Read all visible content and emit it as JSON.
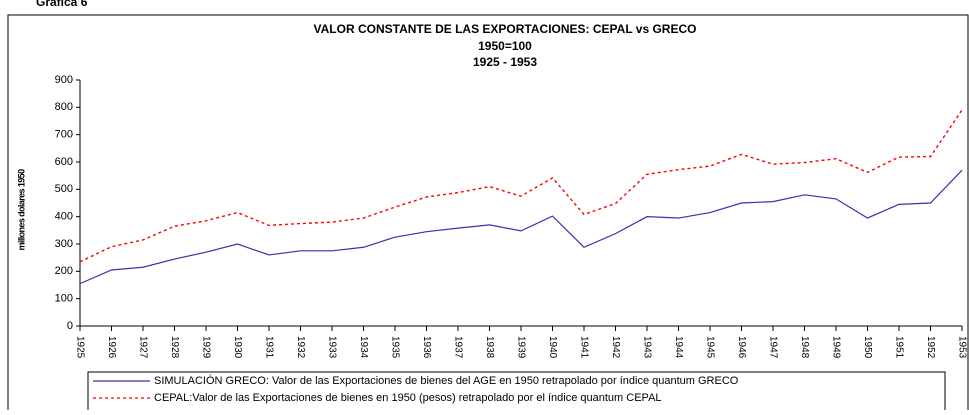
{
  "heading": "Gráfica 6",
  "chart_data": {
    "type": "line",
    "title": "VALOR CONSTANTE DE LAS EXPORTACIONES:  CEPAL vs GRECO",
    "subtitle": [
      "1950=100",
      "1925 - 1953"
    ],
    "y_label": "millones dolares 1950",
    "categories": [
      "1925",
      "1926",
      "1927",
      "1928",
      "1929",
      "1930",
      "1931",
      "1932",
      "1933",
      "1934",
      "1935",
      "1936",
      "1937",
      "1938",
      "1939",
      "1940",
      "1941",
      "1942",
      "1943",
      "1944",
      "1945",
      "1946",
      "1947",
      "1948",
      "1949",
      "1950",
      "1951",
      "1952",
      "1953"
    ],
    "ylim": [
      0,
      900
    ],
    "yticks": [
      0,
      100,
      200,
      300,
      400,
      500,
      600,
      700,
      800,
      900
    ],
    "grid": false,
    "series": [
      {
        "name": "SIMULACIÓN GRECO: Valor de las Exportaciones de bienes del AGE en 1950  retrapolado por índice quantum GRECO",
        "color": "#3333aa",
        "line_style": "solid",
        "values": [
          155,
          205,
          215,
          245,
          270,
          300,
          260,
          275,
          275,
          288,
          325,
          345,
          358,
          370,
          348,
          402,
          288,
          338,
          400,
          395,
          415,
          450,
          455,
          480,
          465,
          395,
          445,
          450,
          570
        ]
      },
      {
        "name": "CEPAL:Valor de las Exportaciones de bienes en 1950 (pesos) retrapolado por el índice quantum CEPAL",
        "color": "#ff0000",
        "line_style": "dotted",
        "values": [
          235,
          290,
          315,
          365,
          385,
          415,
          368,
          375,
          380,
          395,
          435,
          472,
          488,
          510,
          475,
          542,
          408,
          448,
          555,
          572,
          585,
          628,
          592,
          598,
          612,
          562,
          618,
          620,
          790
        ]
      }
    ]
  }
}
